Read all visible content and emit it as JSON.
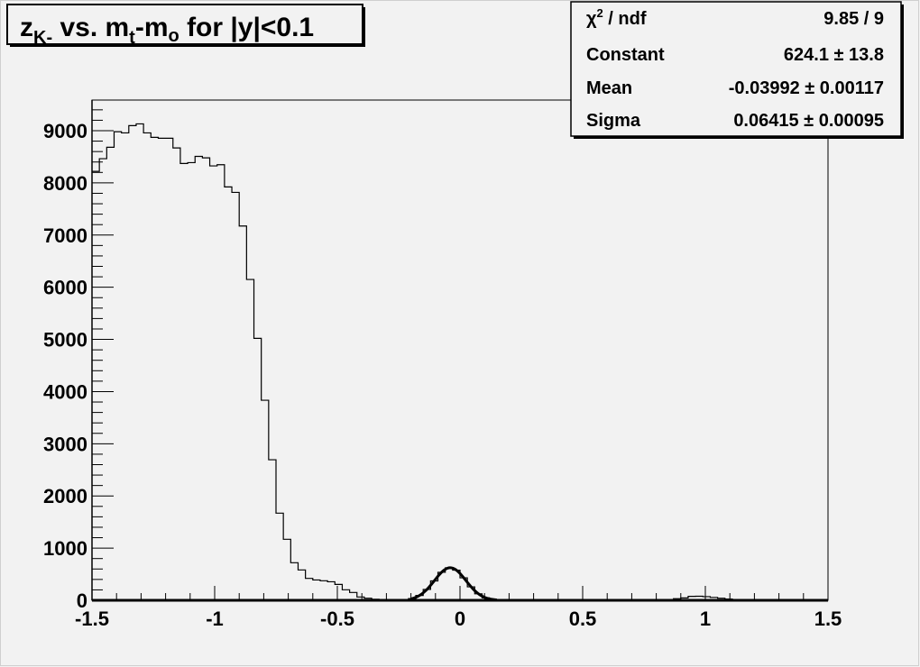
{
  "chart_data": {
    "type": "bar",
    "subtype": "histogram-step",
    "title": {
      "main": "z",
      "sub1": "K-",
      "mid": " vs. m",
      "sub2": "t",
      "mid2": "-m",
      "sub3": "o",
      "tail": " for |y|<0.1"
    },
    "xlabel": "",
    "ylabel": "",
    "xlim": [
      -1.5,
      1.5
    ],
    "ylim": [
      0,
      9500
    ],
    "bin_width": 0.03,
    "x_ticks": [
      "-1.5",
      "-1",
      "-0.5",
      "0",
      "0.5",
      "1",
      "1.5"
    ],
    "x_tick_values": [
      -1.5,
      -1,
      -0.5,
      0,
      0.5,
      1,
      1.5
    ],
    "y_ticks": [
      "0",
      "1000",
      "2000",
      "3000",
      "4000",
      "5000",
      "6000",
      "7000",
      "8000",
      "9000"
    ],
    "y_tick_values": [
      0,
      1000,
      2000,
      3000,
      4000,
      5000,
      6000,
      7000,
      8000,
      9000
    ],
    "grid": false,
    "legend": "none",
    "values": [
      8221,
      8463,
      8682,
      8981,
      8958,
      9097,
      9131,
      8958,
      8872,
      8855,
      8855,
      8670,
      8371,
      8388,
      8508,
      8480,
      8325,
      8348,
      7922,
      7818,
      7173,
      6149,
      5021,
      3834,
      2694,
      1670,
      1169,
      720,
      582,
      420,
      390,
      375,
      355,
      305,
      202,
      150,
      64,
      40,
      20,
      10,
      5,
      5,
      10,
      33,
      93,
      208,
      371,
      537,
      622,
      578,
      431,
      258,
      124,
      47,
      15,
      5,
      0,
      0,
      0,
      0,
      0,
      0,
      0,
      0,
      0,
      0,
      0,
      0,
      0,
      0,
      0,
      0,
      0,
      0,
      0,
      0,
      0,
      5,
      15,
      30,
      45,
      75,
      78,
      70,
      55,
      40,
      25,
      10,
      3,
      0,
      0,
      0,
      0,
      0,
      0,
      0,
      0,
      0,
      0,
      0
    ],
    "fit": {
      "function": "gaussian",
      "range": [
        -0.2,
        0.15
      ],
      "constant": 624.1,
      "mean": -0.03992,
      "sigma": 0.06415
    },
    "stats_box": {
      "placement": "top-right",
      "rows": [
        {
          "label_pre": "χ",
          "label_sup": "2",
          "label_post": " / ndf",
          "value": "9.85 / 9"
        },
        {
          "label": "Constant",
          "value": "624.1 ± 13.8"
        },
        {
          "label": "Mean",
          "value": "-0.03992 ± 0.00117"
        },
        {
          "label": "Sigma",
          "value": "0.06415 ± 0.00095"
        }
      ]
    },
    "colors": {
      "background": "#f2f2f2",
      "line": "#000000"
    }
  }
}
